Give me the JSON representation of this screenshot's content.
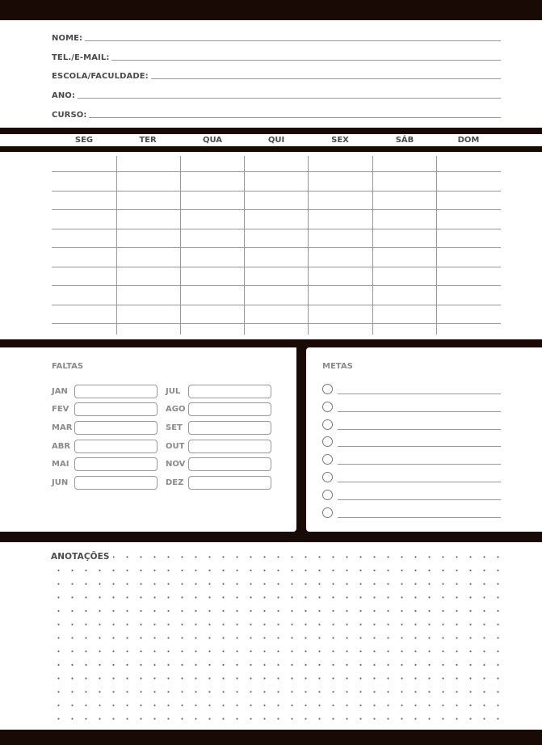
{
  "colors": {
    "bars": "#1a0a05",
    "lines": "#999999"
  },
  "personal_info": [
    {
      "label": "NOME:"
    },
    {
      "label": "TEL./E-MAIL:"
    },
    {
      "label": "ESCOLA/FACULDADE:"
    },
    {
      "label": "ANO:"
    },
    {
      "label": "CURSO:"
    }
  ],
  "weekdays": [
    "SEG",
    "TER",
    "QUA",
    "QUI",
    "SEX",
    "SÁB",
    "DOM"
  ],
  "faltas": {
    "title": "FALTAS",
    "months": [
      "JAN",
      "FEV",
      "MAR",
      "ABR",
      "MAI",
      "JUN",
      "JUL",
      "AGO",
      "SET",
      "OUT",
      "NOV",
      "DEZ"
    ]
  },
  "metas": {
    "title": "METAS",
    "count": 8
  },
  "anotacoes": {
    "title": "ANOTAÇÕES"
  }
}
